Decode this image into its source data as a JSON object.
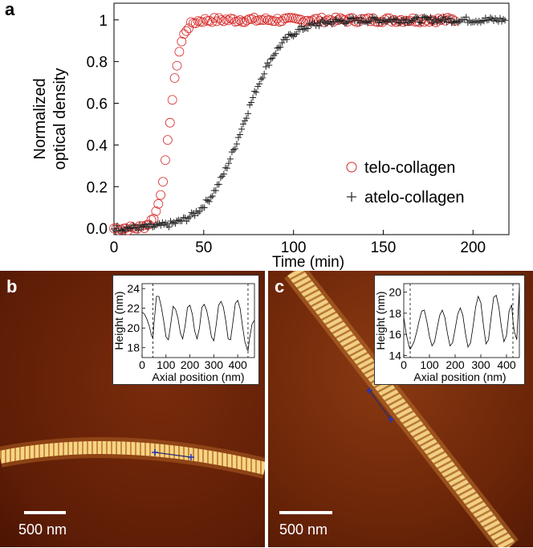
{
  "panels": {
    "a": "a",
    "b": "b",
    "c": "c"
  },
  "chart_data": [
    {
      "type": "scatter",
      "panel": "a",
      "xlabel": "Time (min)",
      "ylabel": "Normalized optical density",
      "ylabel_lines": [
        "Normalized",
        "optical density"
      ],
      "xlim": [
        0,
        220
      ],
      "ylim": [
        -0.03,
        1.08
      ],
      "xticks": [
        0,
        50,
        100,
        150,
        200
      ],
      "yticks": [
        0.0,
        0.2,
        0.4,
        0.6,
        0.8,
        1
      ],
      "ytick_labels": [
        "0.0",
        "0.2",
        "0.4",
        "0.6",
        "0.8",
        "1"
      ],
      "legend_position": "center-right",
      "series": [
        {
          "name": "telo-collagen",
          "marker": "circle",
          "color": "#d62a2a",
          "x_range": [
            0,
            190
          ],
          "step": 1.3,
          "midpoint": 31,
          "rate": 0.32,
          "plateau": 1.0
        },
        {
          "name": "atelo-collagen",
          "marker": "plus",
          "color": "#222222",
          "x_range": [
            0,
            218
          ],
          "step": 0.9,
          "midpoint": 72,
          "rate": 0.095,
          "plateau": 1.0
        }
      ]
    },
    {
      "type": "line",
      "panel": "b-inset",
      "xlabel": "Axial position (nm)",
      "ylabel": "Height (nm)",
      "xlim": [
        0,
        470
      ],
      "ylim": [
        17,
        24.5
      ],
      "xticks": [
        0,
        100,
        200,
        300,
        400
      ],
      "yticks": [
        18,
        20,
        22,
        24
      ],
      "markers_x": [
        45,
        443
      ],
      "x": [
        0,
        10,
        20,
        30,
        40,
        45,
        50,
        60,
        70,
        80,
        90,
        100,
        110,
        120,
        130,
        140,
        150,
        160,
        170,
        180,
        190,
        200,
        210,
        220,
        230,
        240,
        250,
        260,
        270,
        280,
        290,
        300,
        310,
        320,
        330,
        340,
        350,
        360,
        370,
        380,
        390,
        400,
        410,
        420,
        430,
        440,
        443,
        450,
        460,
        470
      ],
      "values": [
        21.6,
        21.4,
        20.9,
        20.2,
        19.2,
        19.0,
        20.5,
        23.2,
        23.2,
        22.2,
        20.8,
        19.1,
        18.8,
        20.4,
        22.2,
        21.9,
        21.0,
        19.5,
        18.9,
        20.2,
        22.1,
        22.3,
        21.4,
        19.7,
        18.9,
        20.0,
        22.1,
        22.4,
        21.8,
        20.6,
        19.1,
        18.7,
        20.3,
        22.3,
        22.7,
        22.1,
        20.7,
        18.9,
        18.8,
        20.6,
        22.5,
        22.8,
        22.0,
        20.2,
        18.6,
        17.8,
        17.7,
        19.0,
        20.4,
        20.8
      ]
    },
    {
      "type": "line",
      "panel": "c-inset",
      "xlabel": "Axial position (nm)",
      "ylabel": "Height (nm)",
      "xlim": [
        0,
        450
      ],
      "ylim": [
        13.8,
        20.8
      ],
      "xticks": [
        0,
        100,
        200,
        300,
        400
      ],
      "yticks": [
        14,
        16,
        18,
        20
      ],
      "markers_x": [
        25,
        425
      ],
      "x": [
        0,
        10,
        20,
        25,
        30,
        40,
        50,
        60,
        70,
        80,
        90,
        100,
        110,
        120,
        130,
        140,
        150,
        160,
        170,
        180,
        190,
        200,
        210,
        220,
        230,
        240,
        250,
        260,
        270,
        280,
        290,
        300,
        310,
        320,
        330,
        340,
        350,
        360,
        370,
        380,
        390,
        400,
        410,
        420,
        425,
        430,
        440,
        450
      ],
      "values": [
        17.6,
        16.0,
        14.9,
        14.6,
        14.8,
        15.3,
        16.2,
        17.3,
        18.2,
        18.3,
        17.2,
        15.8,
        14.9,
        15.3,
        16.6,
        17.8,
        18.3,
        17.6,
        16.1,
        14.9,
        15.2,
        16.5,
        17.9,
        18.5,
        17.8,
        16.1,
        14.8,
        15.2,
        16.8,
        18.6,
        19.6,
        19.0,
        16.9,
        15.1,
        15.5,
        17.6,
        19.5,
        19.7,
        18.6,
        16.7,
        15.3,
        15.9,
        18.2,
        18.8,
        17.3,
        16.3,
        15.5,
        20.4
      ]
    }
  ],
  "scalebars": {
    "b": "500 nm",
    "c": "500 nm"
  }
}
